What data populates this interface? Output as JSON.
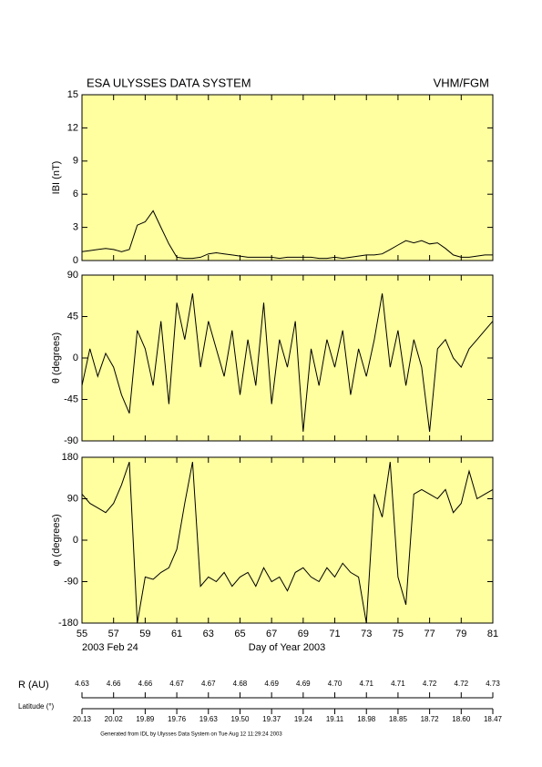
{
  "title": "ESA ULYSSES DATA SYSTEM",
  "instrument": "VHM/FGM",
  "date_label": "2003 Feb 24",
  "chart_data": [
    {
      "type": "line",
      "y_label": "IBI (nT)",
      "color": "#000000",
      "x": [
        55,
        55.5,
        56,
        56.5,
        57,
        57.5,
        58,
        58.5,
        59,
        59.5,
        60,
        60.5,
        61,
        61.5,
        62,
        62.5,
        63,
        63.5,
        64,
        64.5,
        65,
        65.5,
        66,
        66.5,
        67,
        67.5,
        68,
        68.5,
        69,
        69.5,
        70,
        70.5,
        71,
        71.5,
        72,
        72.5,
        73,
        73.5,
        74,
        74.5,
        75,
        75.5,
        76,
        76.5,
        77,
        77.5,
        78,
        78.5,
        79,
        79.5,
        80,
        80.5,
        81
      ],
      "values": [
        0.8,
        0.9,
        1.0,
        1.1,
        1.0,
        0.8,
        1.0,
        3.2,
        3.5,
        4.5,
        3.0,
        1.5,
        0.3,
        0.2,
        0.2,
        0.3,
        0.6,
        0.7,
        0.6,
        0.5,
        0.4,
        0.3,
        0.3,
        0.3,
        0.3,
        0.2,
        0.3,
        0.3,
        0.3,
        0.3,
        0.2,
        0.2,
        0.3,
        0.2,
        0.3,
        0.4,
        0.5,
        0.5,
        0.6,
        1.0,
        1.4,
        1.8,
        1.6,
        1.8,
        1.5,
        1.6,
        1.1,
        0.5,
        0.3,
        0.3,
        0.4,
        0.5,
        0.5
      ],
      "xlim": [
        55,
        81
      ],
      "xticks": [
        55,
        57,
        59,
        61,
        63,
        65,
        67,
        69,
        71,
        73,
        75,
        77,
        79,
        81
      ],
      "ylim": [
        0,
        15
      ],
      "yticks": [
        0,
        3,
        6,
        9,
        12,
        15
      ]
    },
    {
      "type": "line",
      "y_label": "θ (degrees)",
      "color": "#000000",
      "x": [
        55,
        55.5,
        56,
        56.5,
        57,
        57.5,
        58,
        58.5,
        59,
        59.5,
        60,
        60.5,
        61,
        61.5,
        62,
        62.5,
        63,
        63.5,
        64,
        64.5,
        65,
        65.5,
        66,
        66.5,
        67,
        67.5,
        68,
        68.5,
        69,
        69.5,
        70,
        70.5,
        71,
        71.5,
        72,
        72.5,
        73,
        73.5,
        74,
        74.5,
        75,
        75.5,
        76,
        76.5,
        77,
        77.5,
        78,
        78.5,
        79,
        79.5,
        80,
        80.5,
        81
      ],
      "values": [
        -30,
        10,
        -20,
        5,
        -10,
        -40,
        -60,
        30,
        10,
        -30,
        40,
        -50,
        60,
        20,
        70,
        -10,
        40,
        10,
        -20,
        30,
        -40,
        20,
        -30,
        60,
        -50,
        20,
        -10,
        40,
        -80,
        10,
        -30,
        20,
        -10,
        30,
        -40,
        10,
        -20,
        20,
        70,
        -10,
        30,
        -30,
        20,
        -10,
        -80,
        10,
        20,
        0,
        -10,
        10,
        20,
        30,
        40
      ],
      "xlim": [
        55,
        81
      ],
      "xticks": [
        55,
        57,
        59,
        61,
        63,
        65,
        67,
        69,
        71,
        73,
        75,
        77,
        79,
        81
      ],
      "ylim": [
        -90,
        90
      ],
      "yticks": [
        -90,
        -45,
        0,
        45,
        90
      ]
    },
    {
      "type": "line",
      "y_label": "φ (degrees)",
      "x_label": "Day of Year 2003",
      "color": "#000000",
      "x": [
        55,
        55.5,
        56,
        56.5,
        57,
        57.5,
        58,
        58.5,
        59,
        59.5,
        60,
        60.5,
        61,
        61.5,
        62,
        62.5,
        63,
        63.5,
        64,
        64.5,
        65,
        65.5,
        66,
        66.5,
        67,
        67.5,
        68,
        68.5,
        69,
        69.5,
        70,
        70.5,
        71,
        71.5,
        72,
        72.5,
        73,
        73.5,
        74,
        74.5,
        75,
        75.5,
        76,
        76.5,
        77,
        77.5,
        78,
        78.5,
        79,
        79.5,
        80,
        80.5,
        81
      ],
      "values": [
        100,
        80,
        70,
        60,
        80,
        120,
        170,
        -180,
        -80,
        -85,
        -70,
        -60,
        -20,
        80,
        170,
        -100,
        -80,
        -90,
        -70,
        -100,
        -80,
        -70,
        -100,
        -60,
        -90,
        -80,
        -110,
        -70,
        -60,
        -80,
        -90,
        -60,
        -80,
        -50,
        -70,
        -80,
        -180,
        100,
        50,
        170,
        -80,
        -140,
        100,
        110,
        100,
        90,
        110,
        60,
        80,
        150,
        90,
        100,
        110
      ],
      "xlim": [
        55,
        81
      ],
      "xticks": [
        55,
        57,
        59,
        61,
        63,
        65,
        67,
        69,
        71,
        73,
        75,
        77,
        79,
        81
      ],
      "ylim": [
        -180,
        180
      ],
      "yticks": [
        -180,
        -90,
        0,
        90,
        180
      ]
    }
  ],
  "ephemeris": {
    "r_label": "R (AU)",
    "r_values": [
      "4.63",
      "4.66",
      "4.66",
      "4.67",
      "4.67",
      "4.68",
      "4.69",
      "4.69",
      "4.70",
      "4.71",
      "4.71",
      "4.72",
      "4.72",
      "4.73"
    ],
    "lat_label": "Latitude (°)",
    "lat_values": [
      "20.13",
      "20.02",
      "19.89",
      "19.76",
      "19.63",
      "19.50",
      "19.37",
      "19.24",
      "19.11",
      "18.98",
      "18.85",
      "18.72",
      "18.60",
      "18.47"
    ]
  },
  "footer": "Generated from IDL by Ulysses Data System on Tue Aug 12 11:29:24 2003"
}
